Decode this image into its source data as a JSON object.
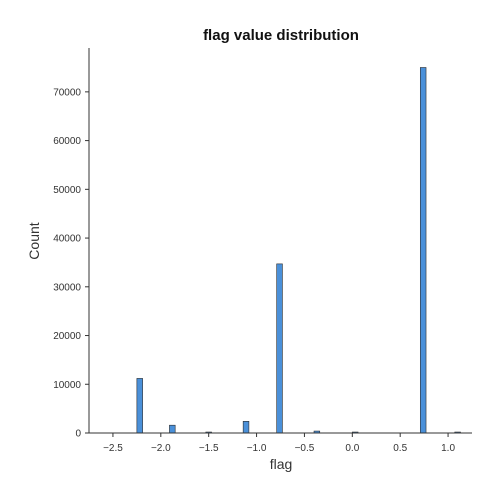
{
  "chart_data": {
    "type": "bar",
    "title": "flag value distribution",
    "xlabel": "flag",
    "ylabel": "Count",
    "xlim": [
      -2.75,
      1.25
    ],
    "ylim": [
      0,
      79000
    ],
    "x_ticks": [
      -2.5,
      -2.0,
      -1.5,
      -1.0,
      -0.5,
      0.0,
      0.5,
      1.0
    ],
    "x_tick_labels": [
      "−2.5",
      "−2.0",
      "−1.5",
      "−1.0",
      "−0.5",
      "0.0",
      "0.5",
      "1.0"
    ],
    "y_ticks": [
      0,
      10000,
      20000,
      30000,
      40000,
      50000,
      60000,
      70000
    ],
    "y_tick_labels": [
      "0",
      "10000",
      "20000",
      "30000",
      "40000",
      "50000",
      "60000",
      "70000"
    ],
    "bin_width": 0.06,
    "bins": [
      {
        "x": -2.22,
        "value": 11200
      },
      {
        "x": -1.88,
        "value": 1600
      },
      {
        "x": -1.5,
        "value": 200
      },
      {
        "x": -1.11,
        "value": 2400
      },
      {
        "x": -0.76,
        "value": 34700
      },
      {
        "x": -0.37,
        "value": 400
      },
      {
        "x": 0.03,
        "value": 200
      },
      {
        "x": 0.74,
        "value": 75000
      },
      {
        "x": 1.1,
        "value": 200
      }
    ],
    "bar_color": "#4a90d9",
    "bar_edge_color": "#2c2c2c",
    "grid": false,
    "legend": "none"
  }
}
